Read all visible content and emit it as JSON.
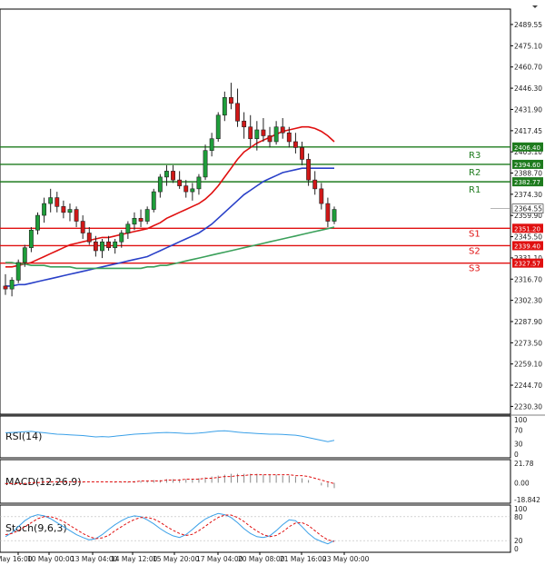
{
  "chart_data": {
    "type": "candlestick",
    "main": {
      "ylim": [
        2225.0,
        2500.0
      ],
      "y_ticks": [
        "2489.55",
        "2475.10",
        "2460.70",
        "2446.30",
        "2431.90",
        "2417.45",
        "2403.10",
        "2388.70",
        "2374.30",
        "2359.90",
        "2345.50",
        "2331.10",
        "2316.70",
        "2302.30",
        "2287.90",
        "2273.50",
        "2259.10",
        "2244.70",
        "2230.30"
      ],
      "levels": [
        {
          "name": "R3",
          "value": 2406.4,
          "tag": "2406.40",
          "color": "#1e7b1e"
        },
        {
          "name": "R2",
          "value": 2394.6,
          "tag": "2394.60",
          "color": "#1e7b1e"
        },
        {
          "name": "R1",
          "value": 2382.77,
          "tag": "2382.77",
          "color": "#1e7b1e"
        },
        {
          "name": "S1",
          "value": 2351.2,
          "tag": "2351.20",
          "color": "#e01010"
        },
        {
          "name": "S2",
          "value": 2339.4,
          "tag": "2339.40",
          "color": "#e01010"
        },
        {
          "name": "S3",
          "value": 2327.57,
          "tag": "2327.57",
          "color": "#e01010"
        }
      ],
      "current_price": {
        "value": 2364.55,
        "tag": "2364.55",
        "color": "#222222"
      },
      "candles": [
        [
          2312,
          2320,
          2306,
          2310
        ],
        [
          2310,
          2318,
          2305,
          2316
        ],
        [
          2316,
          2330,
          2314,
          2328
        ],
        [
          2328,
          2340,
          2325,
          2338
        ],
        [
          2338,
          2352,
          2335,
          2350
        ],
        [
          2350,
          2362,
          2347,
          2360
        ],
        [
          2360,
          2372,
          2355,
          2368
        ],
        [
          2368,
          2378,
          2362,
          2372
        ],
        [
          2372,
          2376,
          2362,
          2366
        ],
        [
          2366,
          2370,
          2358,
          2362
        ],
        [
          2362,
          2368,
          2356,
          2364
        ],
        [
          2364,
          2366,
          2352,
          2356
        ],
        [
          2356,
          2360,
          2344,
          2348
        ],
        [
          2348,
          2352,
          2340,
          2342
        ],
        [
          2342,
          2346,
          2332,
          2336
        ],
        [
          2336,
          2344,
          2331,
          2342
        ],
        [
          2342,
          2346,
          2336,
          2338
        ],
        [
          2338,
          2344,
          2334,
          2342
        ],
        [
          2342,
          2350,
          2338,
          2348
        ],
        [
          2348,
          2356,
          2344,
          2354
        ],
        [
          2354,
          2362,
          2350,
          2358
        ],
        [
          2358,
          2364,
          2352,
          2356
        ],
        [
          2356,
          2366,
          2354,
          2364
        ],
        [
          2364,
          2378,
          2362,
          2376
        ],
        [
          2376,
          2388,
          2372,
          2386
        ],
        [
          2386,
          2394,
          2380,
          2390
        ],
        [
          2390,
          2394,
          2382,
          2384
        ],
        [
          2384,
          2390,
          2378,
          2380
        ],
        [
          2380,
          2384,
          2372,
          2376
        ],
        [
          2376,
          2382,
          2370,
          2378
        ],
        [
          2378,
          2388,
          2374,
          2386
        ],
        [
          2386,
          2408,
          2384,
          2404
        ],
        [
          2404,
          2416,
          2400,
          2412
        ],
        [
          2412,
          2430,
          2410,
          2428
        ],
        [
          2428,
          2444,
          2424,
          2440
        ],
        [
          2440,
          2450,
          2432,
          2436
        ],
        [
          2436,
          2446,
          2420,
          2424
        ],
        [
          2424,
          2430,
          2412,
          2420
        ],
        [
          2420,
          2428,
          2406,
          2412
        ],
        [
          2412,
          2424,
          2404,
          2418
        ],
        [
          2418,
          2426,
          2410,
          2414
        ],
        [
          2414,
          2420,
          2406,
          2410
        ],
        [
          2410,
          2424,
          2408,
          2420
        ],
        [
          2420,
          2426,
          2412,
          2416
        ],
        [
          2416,
          2420,
          2406,
          2410
        ],
        [
          2410,
          2416,
          2402,
          2406
        ],
        [
          2406,
          2410,
          2394,
          2398
        ],
        [
          2398,
          2402,
          2380,
          2384
        ],
        [
          2384,
          2390,
          2374,
          2378
        ],
        [
          2378,
          2382,
          2364,
          2368
        ],
        [
          2368,
          2372,
          2352,
          2356
        ],
        [
          2356,
          2366,
          2354,
          2364
        ]
      ],
      "ma_series": [
        {
          "color": "#e01010",
          "values": [
            2325,
            2325,
            2326,
            2327,
            2328,
            2330,
            2332,
            2334,
            2336,
            2338,
            2340,
            2341,
            2342,
            2343,
            2344,
            2345,
            2345,
            2346,
            2347,
            2348,
            2349,
            2350,
            2351,
            2353,
            2355,
            2358,
            2360,
            2362,
            2364,
            2366,
            2368,
            2371,
            2375,
            2380,
            2386,
            2392,
            2398,
            2403,
            2406,
            2409,
            2411,
            2413,
            2415,
            2417,
            2418,
            2419,
            2420,
            2420,
            2419,
            2417,
            2414,
            2410
          ]
        },
        {
          "color": "#2940c8",
          "values": [
            2312,
            2312,
            2313,
            2313,
            2314,
            2315,
            2316,
            2317,
            2318,
            2319,
            2320,
            2321,
            2322,
            2323,
            2324,
            2325,
            2326,
            2327,
            2328,
            2329,
            2330,
            2331,
            2332,
            2334,
            2336,
            2338,
            2340,
            2342,
            2344,
            2346,
            2348,
            2351,
            2354,
            2358,
            2362,
            2366,
            2370,
            2374,
            2377,
            2380,
            2383,
            2385,
            2387,
            2389,
            2390,
            2391,
            2392,
            2392,
            2392,
            2392,
            2392,
            2392
          ]
        },
        {
          "color": "#3aa05a",
          "values": [
            2328,
            2328,
            2327,
            2327,
            2326,
            2326,
            2326,
            2325,
            2325,
            2325,
            2325,
            2324,
            2324,
            2324,
            2324,
            2324,
            2324,
            2324,
            2324,
            2324,
            2324,
            2324,
            2325,
            2325,
            2326,
            2326,
            2327,
            2328,
            2329,
            2330,
            2331,
            2332,
            2333,
            2334,
            2335,
            2336,
            2337,
            2338,
            2339,
            2340,
            2341,
            2342,
            2343,
            2344,
            2345,
            2346,
            2347,
            2348,
            2349,
            2350,
            2351,
            2352
          ]
        }
      ]
    },
    "time_labels": [
      "May 16:00",
      "10 May 00:00",
      "13 May 04:00",
      "14 May 12:00",
      "15 May 20:00",
      "17 May 04:00",
      "20 May 08:00",
      "21 May 16:00",
      "23 May 00:00"
    ],
    "rsi": {
      "label": "RSI(14)",
      "ticks": [
        "100",
        "70",
        "30",
        "0"
      ],
      "levels": [
        100,
        70,
        30,
        0
      ],
      "color": "#3aa0e8",
      "values": [
        62,
        63,
        64,
        65,
        66,
        64,
        62,
        60,
        58,
        57,
        56,
        55,
        54,
        52,
        50,
        51,
        50,
        52,
        54,
        56,
        58,
        59,
        60,
        61,
        62,
        63,
        62,
        61,
        60,
        60,
        61,
        63,
        65,
        67,
        68,
        66,
        64,
        62,
        61,
        60,
        59,
        58,
        58,
        57,
        56,
        55,
        52,
        48,
        44,
        40,
        36,
        40
      ]
    },
    "macd": {
      "label": "MACD(12,26,9)",
      "ticks": [
        "21.78",
        "0.00",
        "-18.842"
      ],
      "ylim": [
        -18.842,
        21.78
      ],
      "signal_color": "#e01010",
      "hist_color": "#888888",
      "hist": [
        -2,
        -2,
        -1,
        -1,
        0,
        1,
        1,
        2,
        2,
        2,
        2,
        1,
        1,
        0,
        0,
        0,
        0,
        1,
        1,
        1,
        2,
        2,
        2,
        3,
        3,
        4,
        4,
        4,
        4,
        4,
        5,
        6,
        7,
        8,
        9,
        10,
        10,
        10,
        10,
        10,
        9,
        9,
        9,
        8,
        8,
        7,
        5,
        3,
        0,
        -3,
        -5,
        -6
      ],
      "signal": [
        -1,
        -1,
        -1,
        -1,
        0,
        0,
        1,
        1,
        1,
        1,
        1,
        1,
        1,
        1,
        1,
        1,
        1,
        1,
        1,
        1,
        1,
        2,
        2,
        2,
        2,
        3,
        3,
        3,
        4,
        4,
        4,
        5,
        5,
        6,
        7,
        7,
        8,
        8,
        9,
        9,
        9,
        9,
        9,
        9,
        9,
        8,
        8,
        7,
        5,
        3,
        1,
        -1
      ]
    },
    "stoch": {
      "label": "Stoch(9,6,3)",
      "ticks": [
        "100",
        "80",
        "20",
        "0"
      ],
      "levels": [
        100,
        80,
        20,
        0
      ],
      "k_color": "#3aa0e8",
      "d_color": "#e01010",
      "k": [
        30,
        40,
        55,
        70,
        80,
        85,
        82,
        75,
        65,
        55,
        45,
        35,
        28,
        22,
        25,
        35,
        48,
        60,
        70,
        78,
        82,
        80,
        72,
        62,
        50,
        40,
        32,
        28,
        35,
        48,
        62,
        74,
        82,
        88,
        85,
        78,
        65,
        50,
        38,
        30,
        28,
        32,
        45,
        60,
        72,
        70,
        55,
        38,
        25,
        18,
        12,
        20
      ],
      "d": [
        35,
        38,
        45,
        55,
        65,
        75,
        80,
        80,
        75,
        68,
        58,
        48,
        38,
        30,
        25,
        27,
        33,
        45,
        55,
        65,
        73,
        78,
        78,
        74,
        66,
        55,
        46,
        38,
        33,
        36,
        45,
        56,
        68,
        78,
        84,
        84,
        78,
        68,
        55,
        44,
        35,
        30,
        33,
        42,
        55,
        64,
        65,
        58,
        45,
        32,
        22,
        18
      ]
    }
  }
}
